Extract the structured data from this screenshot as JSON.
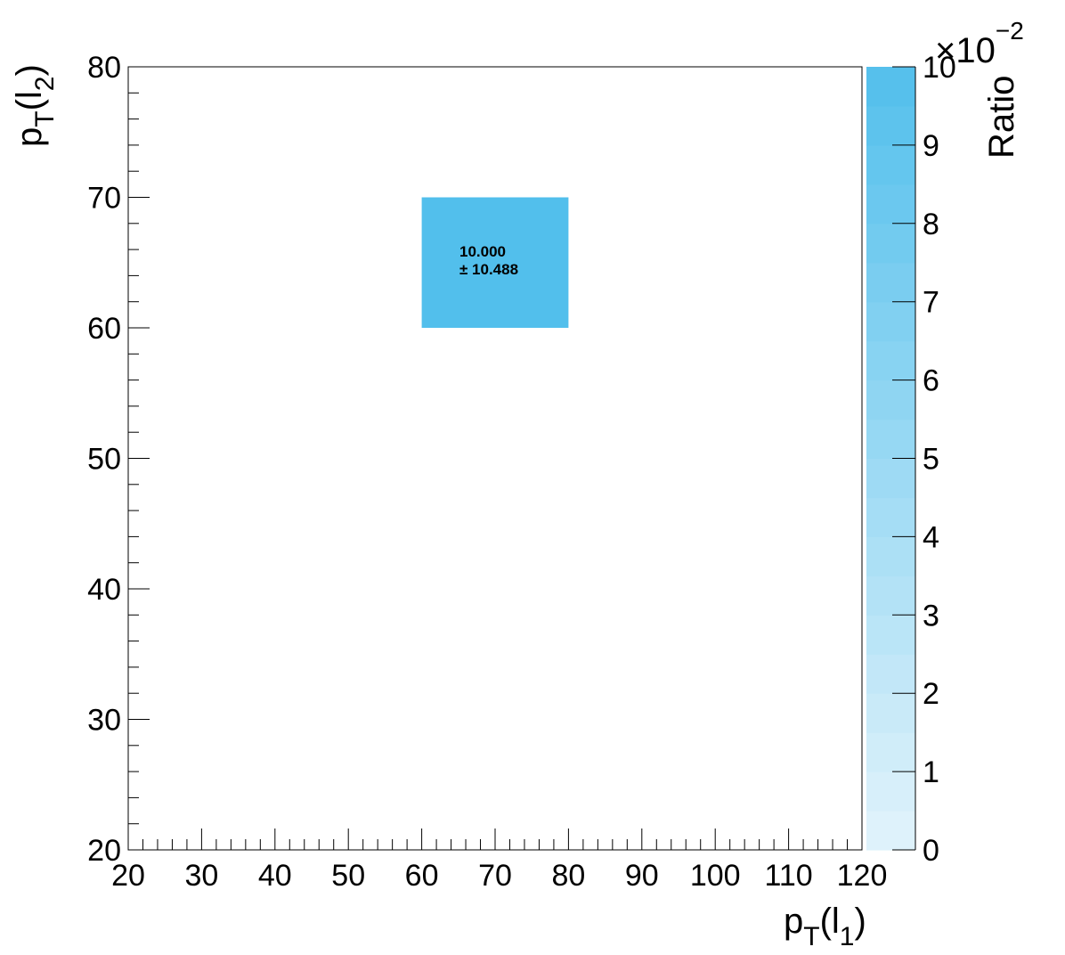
{
  "chart_data": {
    "type": "heatmap",
    "title": "",
    "xlabel": {
      "main": "p",
      "sub": "T",
      "paren_open": "(l",
      "index": "1",
      "paren_close": ")"
    },
    "ylabel": {
      "main": "p",
      "sub": "T",
      "paren_open": "(l",
      "index": "2",
      "paren_close": ")"
    },
    "zlabel": "Ratio",
    "z_multiplier": {
      "base": "×10",
      "exponent": "−2"
    },
    "xlim": [
      20,
      120
    ],
    "ylim": [
      20,
      80
    ],
    "zlim": [
      0,
      10
    ],
    "x_ticks": [
      20,
      30,
      40,
      50,
      60,
      70,
      80,
      90,
      100,
      110,
      120
    ],
    "y_ticks": [
      20,
      30,
      40,
      50,
      60,
      70,
      80
    ],
    "z_ticks": [
      0,
      1,
      2,
      3,
      4,
      5,
      6,
      7,
      8,
      9,
      10
    ],
    "cells": [
      {
        "x0": 60,
        "x1": 80,
        "y0": 60,
        "y1": 70,
        "value": 10.0,
        "value_text": "10.000",
        "error_text": "± 10.488"
      }
    ],
    "colors": {
      "palette_low": "#e2f3fb",
      "palette_high": "#52bfec",
      "frame": "#000000"
    },
    "grid": false,
    "legend": "colorbar-right"
  }
}
